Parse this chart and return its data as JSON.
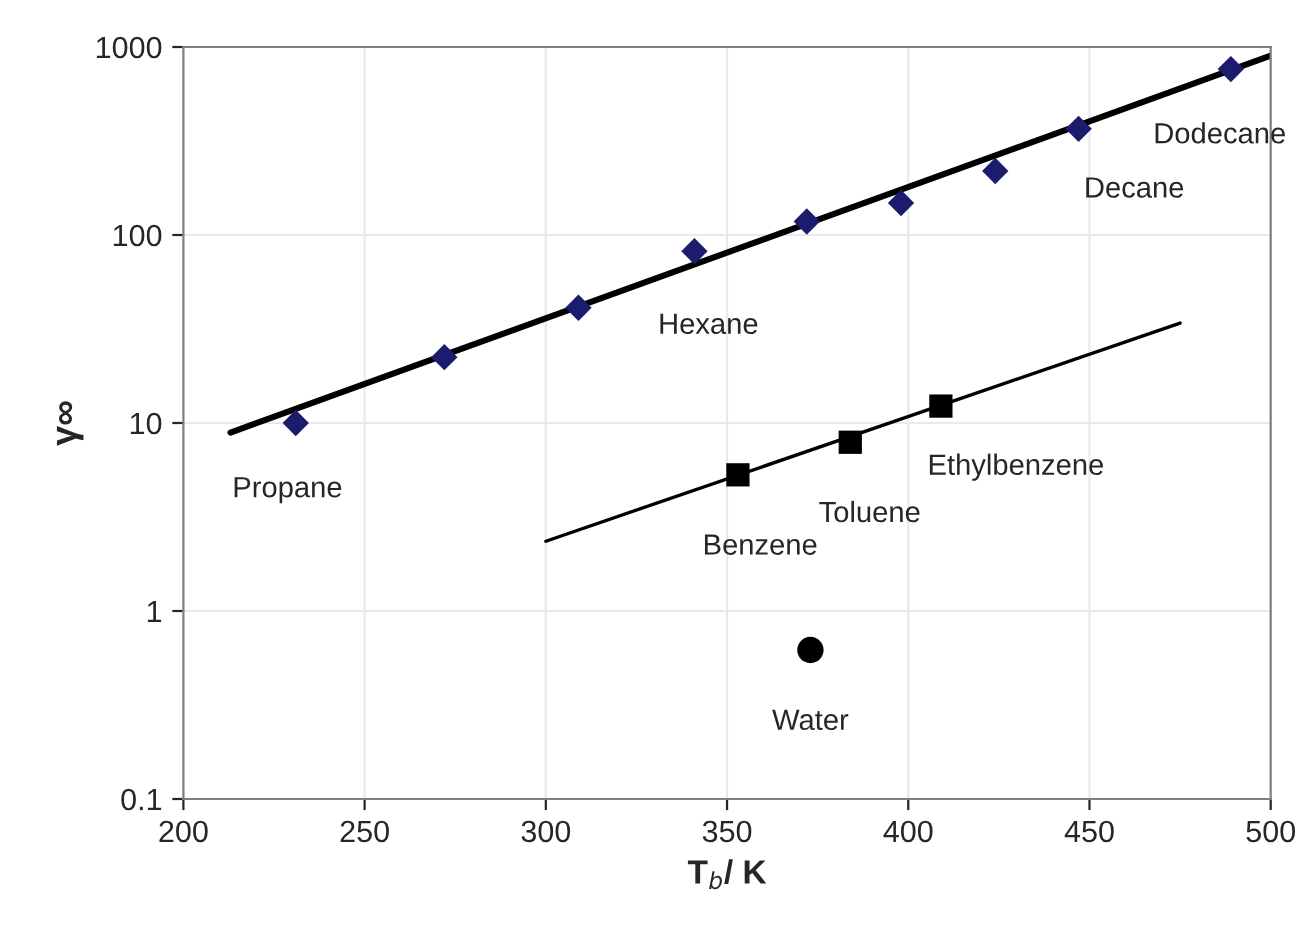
{
  "chart_data": {
    "type": "scatter",
    "xlabel": "T$_{b}$/ K",
    "ylabel": "γ∞",
    "log": "y",
    "grid": true,
    "legend": false,
    "xlim": [
      200,
      500
    ],
    "xticks": [
      200,
      250,
      300,
      350,
      400,
      450,
      500
    ],
    "ylim": [
      0.1,
      1000
    ],
    "yticks": [
      0.1,
      1,
      10,
      100,
      1000
    ],
    "series": [
      {
        "type": "line",
        "color": "#000000",
        "marker": "none",
        "x": [
          213,
          500
        ],
        "values": [
          8.9,
          900
        ]
      },
      {
        "color": "#1c1c6e",
        "marker": "diamond",
        "x": [
          231,
          272,
          309,
          341,
          372,
          398,
          424,
          447,
          489
        ],
        "values": [
          10,
          22.4,
          41,
          82,
          118,
          148,
          219,
          367,
          763
        ]
      },
      {
        "type": "line",
        "color": "#000000",
        "marker": "none",
        "x": [
          300,
          475
        ],
        "values": [
          2.35,
          34
        ]
      },
      {
        "color": "#000000",
        "marker": "square",
        "x": [
          353,
          384,
          409
        ],
        "values": [
          5.3,
          7.9,
          12.3
        ]
      },
      {
        "color": "#000000",
        "marker": "circle",
        "x": [
          373
        ],
        "values": [
          0.62
        ]
      }
    ],
    "annotations": [
      {
        "text": "Propane",
        "x": 231,
        "y": 10
      },
      {
        "text": "Hexane",
        "x": 341,
        "y": 82
      },
      {
        "text": "Decane",
        "x": 447,
        "y": 367
      },
      {
        "text": "Dodecane",
        "x": 489,
        "y": 763
      },
      {
        "text": "Ethylbenzene",
        "x": 409,
        "y": 12.3
      },
      {
        "text": "Toluene",
        "x": 384,
        "y": 7.9
      },
      {
        "text": "Benzene",
        "x": 353,
        "y": 5.3
      },
      {
        "text": "Water",
        "x": 373,
        "y": 0.62
      }
    ]
  }
}
